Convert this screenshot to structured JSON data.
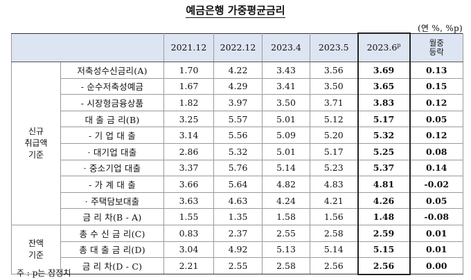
{
  "title": "예금은행 가중평균금리",
  "unit": "(연 %, %p)",
  "header": {
    "periods": [
      "2021.12",
      "2022.12",
      "2023.4",
      "2023.5"
    ],
    "latest": "2023.6",
    "latest_sup": "p",
    "change_line1": "월중",
    "change_line2": "등락"
  },
  "groups": {
    "new_line1": "신규",
    "new_line2": "취급액",
    "new_line3": "기준",
    "bal_line1": "잔액",
    "bal_line2": "기준"
  },
  "rows": [
    {
      "label": "저축성수신금리(A)",
      "values": [
        "1.70",
        "4.22",
        "3.43",
        "3.56"
      ],
      "latest": "3.69",
      "change": "0.13"
    },
    {
      "label": "- 순수저축성예금",
      "values": [
        "1.67",
        "4.29",
        "3.41",
        "3.50"
      ],
      "latest": "3.65",
      "change": "0.15"
    },
    {
      "label": "- 시장형금융상품",
      "values": [
        "1.82",
        "3.97",
        "3.50",
        "3.71"
      ],
      "latest": "3.83",
      "change": "0.12"
    },
    {
      "label": "대 출 금 리(B)",
      "values": [
        "3.25",
        "5.57",
        "5.01",
        "5.12"
      ],
      "latest": "5.17",
      "change": "0.05"
    },
    {
      "label": "- 기 업 대 출",
      "values": [
        "3.14",
        "5.56",
        "5.09",
        "5.20"
      ],
      "latest": "5.32",
      "change": "0.12"
    },
    {
      "label": "· 대기업 대출",
      "values": [
        "2.86",
        "5.32",
        "5.01",
        "5.17"
      ],
      "latest": "5.25",
      "change": "0.08"
    },
    {
      "label": "· 중소기업 대출",
      "values": [
        "3.37",
        "5.76",
        "5.14",
        "5.23"
      ],
      "latest": "5.37",
      "change": "0.14"
    },
    {
      "label": "- 가 계 대 출",
      "values": [
        "3.66",
        "5.64",
        "4.82",
        "4.83"
      ],
      "latest": "4.81",
      "change": "-0.02"
    },
    {
      "label": "· 주택담보대출",
      "values": [
        "3.63",
        "4.63",
        "4.24",
        "4.21"
      ],
      "latest": "4.26",
      "change": "0.05"
    },
    {
      "label": "금 리 차(B - A)",
      "values": [
        "1.55",
        "1.35",
        "1.58",
        "1.56"
      ],
      "latest": "1.48",
      "change": "-0.08"
    },
    {
      "label": "총 수 신 금 리(C)",
      "values": [
        "0.83",
        "2.37",
        "2.55",
        "2.58"
      ],
      "latest": "2.59",
      "change": "0.01"
    },
    {
      "label": "총 대 출 금 리(D)",
      "values": [
        "3.04",
        "4.92",
        "5.13",
        "5.14"
      ],
      "latest": "5.15",
      "change": "0.01"
    },
    {
      "label": "금 리 차(D - C)",
      "values": [
        "2.21",
        "2.55",
        "2.58",
        "2.56"
      ],
      "latest": "2.56",
      "change": "0.00"
    }
  ],
  "note": "주 : p는 잠정치"
}
